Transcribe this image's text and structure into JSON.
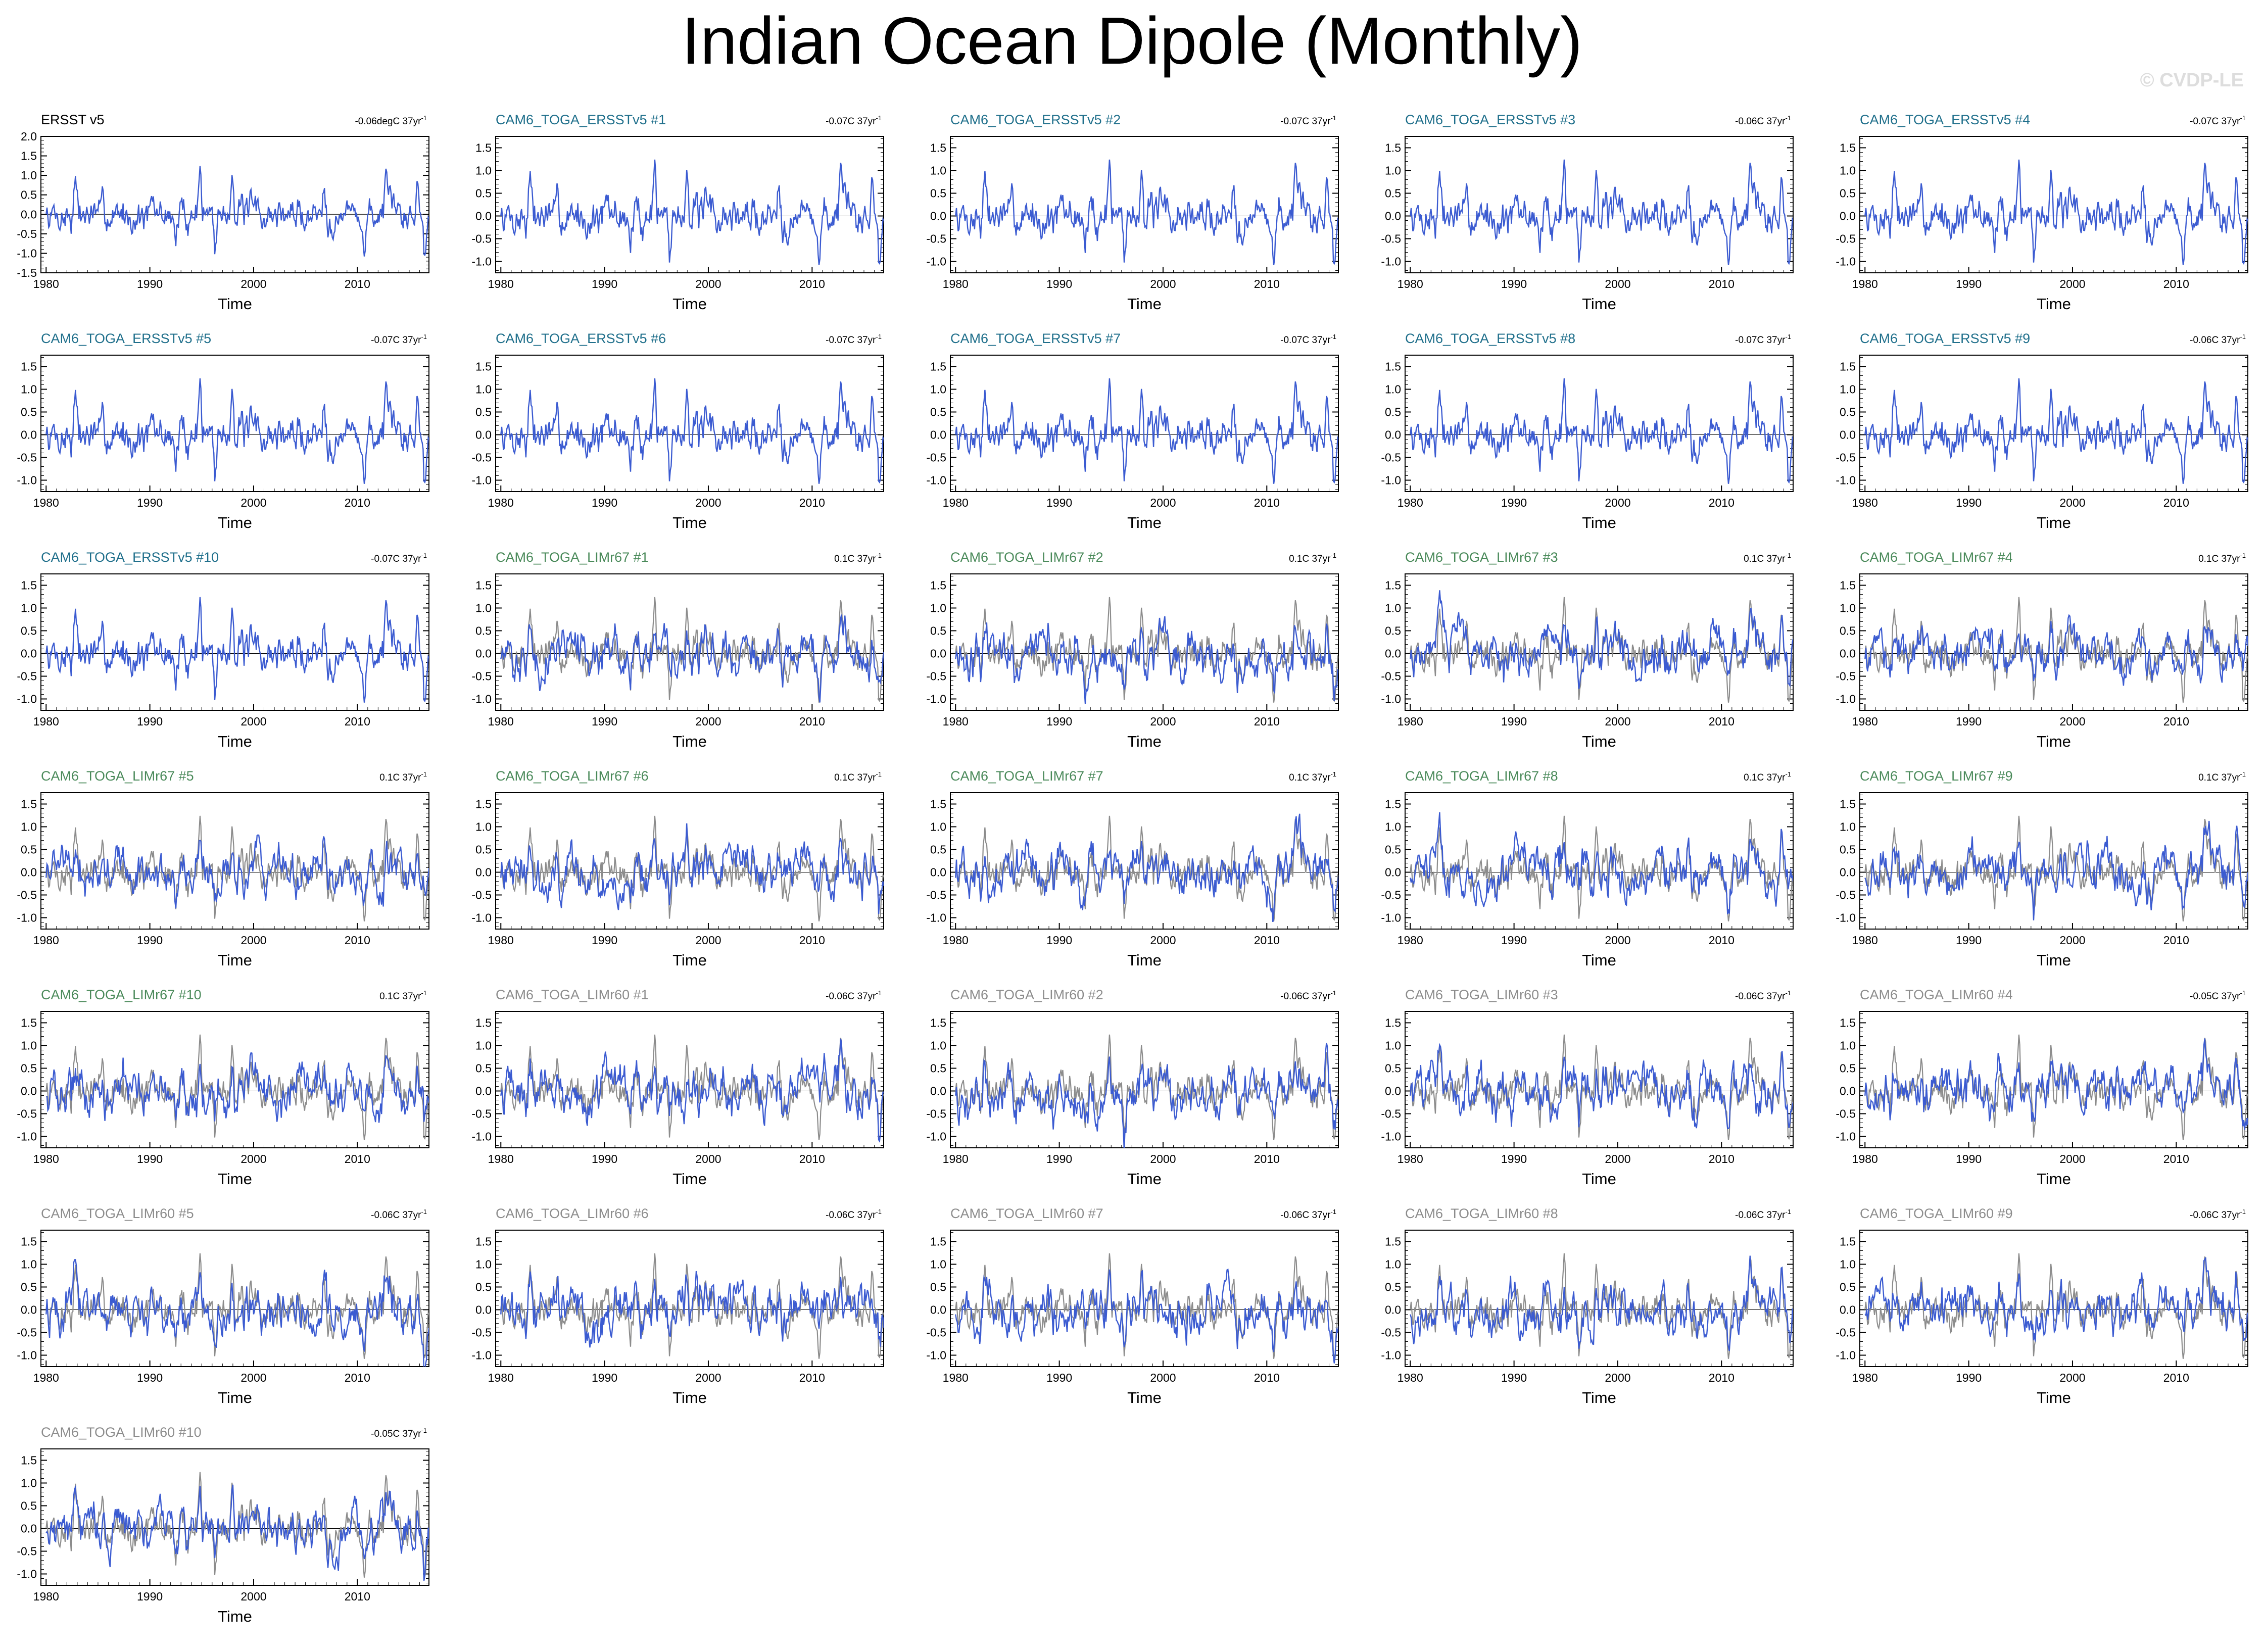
{
  "title": "Indian Ocean Dipole (Monthly)",
  "watermark": "© CVDP-LE",
  "colors": {
    "model_line": "#3b5bd1",
    "observed_line": "#8c8c8c",
    "ersst_title": "#000000",
    "ersstv5_title": "#1f6f8b",
    "limr67_title": "#4a8a5a",
    "limr60_title": "#8c8c8c"
  },
  "chart_data": {
    "type": "line",
    "xlabel": "Time",
    "xlim": [
      1979.5,
      2016.9
    ],
    "x_ticks": [
      1980,
      1990,
      2000,
      2010
    ],
    "trend_unit": "37yr",
    "trend_exponent": "-1",
    "panels": [
      {
        "title": "ERSST v5",
        "group": "ersst",
        "trend": "-0.06degC",
        "ylim": [
          -1.5,
          2.0
        ],
        "y_ticks": [
          "2.0",
          "1.5",
          "1.0",
          "0.5",
          "0.0",
          "-0.5",
          "-1.0",
          "-1.5"
        ],
        "scale": 1.0,
        "seed": 11,
        "overlay": false
      },
      {
        "title": "CAM6_TOGA_ERSSTv5 #1",
        "group": "ersstv5",
        "trend": "-0.07C",
        "ylim": [
          -1.25,
          1.75
        ],
        "y_ticks": [
          "1.5",
          "1.0",
          "0.5",
          "0.0",
          "-0.5",
          "-1.0"
        ],
        "scale": 1.0,
        "seed": 11,
        "overlay": false
      },
      {
        "title": "CAM6_TOGA_ERSSTv5 #2",
        "group": "ersstv5",
        "trend": "-0.07C",
        "ylim": [
          -1.25,
          1.75
        ],
        "y_ticks": [
          "1.5",
          "1.0",
          "0.5",
          "0.0",
          "-0.5",
          "-1.0"
        ],
        "scale": 1.0,
        "seed": 11,
        "overlay": false
      },
      {
        "title": "CAM6_TOGA_ERSSTv5 #3",
        "group": "ersstv5",
        "trend": "-0.06C",
        "ylim": [
          -1.25,
          1.75
        ],
        "y_ticks": [
          "1.5",
          "1.0",
          "0.5",
          "0.0",
          "-0.5",
          "-1.0"
        ],
        "scale": 1.0,
        "seed": 11,
        "overlay": false
      },
      {
        "title": "CAM6_TOGA_ERSSTv5 #4",
        "group": "ersstv5",
        "trend": "-0.07C",
        "ylim": [
          -1.25,
          1.75
        ],
        "y_ticks": [
          "1.5",
          "1.0",
          "0.5",
          "0.0",
          "-0.5",
          "-1.0"
        ],
        "scale": 1.0,
        "seed": 11,
        "overlay": false
      },
      {
        "title": "CAM6_TOGA_ERSSTv5 #5",
        "group": "ersstv5",
        "trend": "-0.07C",
        "ylim": [
          -1.25,
          1.75
        ],
        "y_ticks": [
          "1.5",
          "1.0",
          "0.5",
          "0.0",
          "-0.5",
          "-1.0"
        ],
        "scale": 1.0,
        "seed": 11,
        "overlay": false
      },
      {
        "title": "CAM6_TOGA_ERSSTv5 #6",
        "group": "ersstv5",
        "trend": "-0.07C",
        "ylim": [
          -1.25,
          1.75
        ],
        "y_ticks": [
          "1.5",
          "1.0",
          "0.5",
          "0.0",
          "-0.5",
          "-1.0"
        ],
        "scale": 1.0,
        "seed": 11,
        "overlay": false
      },
      {
        "title": "CAM6_TOGA_ERSSTv5 #7",
        "group": "ersstv5",
        "trend": "-0.07C",
        "ylim": [
          -1.25,
          1.75
        ],
        "y_ticks": [
          "1.5",
          "1.0",
          "0.5",
          "0.0",
          "-0.5",
          "-1.0"
        ],
        "scale": 1.0,
        "seed": 11,
        "overlay": false
      },
      {
        "title": "CAM6_TOGA_ERSSTv5 #8",
        "group": "ersstv5",
        "trend": "-0.07C",
        "ylim": [
          -1.25,
          1.75
        ],
        "y_ticks": [
          "1.5",
          "1.0",
          "0.5",
          "0.0",
          "-0.5",
          "-1.0"
        ],
        "scale": 1.0,
        "seed": 11,
        "overlay": false
      },
      {
        "title": "CAM6_TOGA_ERSSTv5 #9",
        "group": "ersstv5",
        "trend": "-0.06C",
        "ylim": [
          -1.25,
          1.75
        ],
        "y_ticks": [
          "1.5",
          "1.0",
          "0.5",
          "0.0",
          "-0.5",
          "-1.0"
        ],
        "scale": 1.0,
        "seed": 11,
        "overlay": false
      },
      {
        "title": "CAM6_TOGA_ERSSTv5 #10",
        "group": "ersstv5",
        "trend": "-0.07C",
        "ylim": [
          -1.25,
          1.75
        ],
        "y_ticks": [
          "1.5",
          "1.0",
          "0.5",
          "0.0",
          "-0.5",
          "-1.0"
        ],
        "scale": 1.0,
        "seed": 11,
        "overlay": false
      },
      {
        "title": "CAM6_TOGA_LIMr67 #1",
        "group": "limr67",
        "trend": "0.1C",
        "ylim": [
          -1.25,
          1.75
        ],
        "y_ticks": [
          "1.5",
          "1.0",
          "0.5",
          "0.0",
          "-0.5",
          "-1.0"
        ],
        "scale": 0.38,
        "seed": 101,
        "overlay": true
      },
      {
        "title": "CAM6_TOGA_LIMr67 #2",
        "group": "limr67",
        "trend": "0.1C",
        "ylim": [
          -1.25,
          1.75
        ],
        "y_ticks": [
          "1.5",
          "1.0",
          "0.5",
          "0.0",
          "-0.5",
          "-1.0"
        ],
        "scale": 0.38,
        "seed": 102,
        "overlay": true
      },
      {
        "title": "CAM6_TOGA_LIMr67 #3",
        "group": "limr67",
        "trend": "0.1C",
        "ylim": [
          -1.25,
          1.75
        ],
        "y_ticks": [
          "1.5",
          "1.0",
          "0.5",
          "0.0",
          "-0.5",
          "-1.0"
        ],
        "scale": 0.38,
        "seed": 103,
        "overlay": true
      },
      {
        "title": "CAM6_TOGA_LIMr67 #4",
        "group": "limr67",
        "trend": "0.1C",
        "ylim": [
          -1.25,
          1.75
        ],
        "y_ticks": [
          "1.5",
          "1.0",
          "0.5",
          "0.0",
          "-0.5",
          "-1.0"
        ],
        "scale": 0.38,
        "seed": 104,
        "overlay": true
      },
      {
        "title": "CAM6_TOGA_LIMr67 #5",
        "group": "limr67",
        "trend": "0.1C",
        "ylim": [
          -1.25,
          1.75
        ],
        "y_ticks": [
          "1.5",
          "1.0",
          "0.5",
          "0.0",
          "-0.5",
          "-1.0"
        ],
        "scale": 0.38,
        "seed": 105,
        "overlay": true
      },
      {
        "title": "CAM6_TOGA_LIMr67 #6",
        "group": "limr67",
        "trend": "0.1C",
        "ylim": [
          -1.25,
          1.75
        ],
        "y_ticks": [
          "1.5",
          "1.0",
          "0.5",
          "0.0",
          "-0.5",
          "-1.0"
        ],
        "scale": 0.38,
        "seed": 106,
        "overlay": true
      },
      {
        "title": "CAM6_TOGA_LIMr67 #7",
        "group": "limr67",
        "trend": "0.1C",
        "ylim": [
          -1.25,
          1.75
        ],
        "y_ticks": [
          "1.5",
          "1.0",
          "0.5",
          "0.0",
          "-0.5",
          "-1.0"
        ],
        "scale": 0.38,
        "seed": 107,
        "overlay": true
      },
      {
        "title": "CAM6_TOGA_LIMr67 #8",
        "group": "limr67",
        "trend": "0.1C",
        "ylim": [
          -1.25,
          1.75
        ],
        "y_ticks": [
          "1.5",
          "1.0",
          "0.5",
          "0.0",
          "-0.5",
          "-1.0"
        ],
        "scale": 0.38,
        "seed": 108,
        "overlay": true
      },
      {
        "title": "CAM6_TOGA_LIMr67 #9",
        "group": "limr67",
        "trend": "0.1C",
        "ylim": [
          -1.25,
          1.75
        ],
        "y_ticks": [
          "1.5",
          "1.0",
          "0.5",
          "0.0",
          "-0.5",
          "-1.0"
        ],
        "scale": 0.38,
        "seed": 109,
        "overlay": true
      },
      {
        "title": "CAM6_TOGA_LIMr67 #10",
        "group": "limr67",
        "trend": "0.1C",
        "ylim": [
          -1.25,
          1.75
        ],
        "y_ticks": [
          "1.5",
          "1.0",
          "0.5",
          "0.0",
          "-0.5",
          "-1.0"
        ],
        "scale": 0.38,
        "seed": 110,
        "overlay": true
      },
      {
        "title": "CAM6_TOGA_LIMr60 #1",
        "group": "limr60",
        "trend": "-0.06C",
        "ylim": [
          -1.25,
          1.75
        ],
        "y_ticks": [
          "1.5",
          "1.0",
          "0.5",
          "0.0",
          "-0.5",
          "-1.0"
        ],
        "scale": 0.4,
        "seed": 201,
        "overlay": true
      },
      {
        "title": "CAM6_TOGA_LIMr60 #2",
        "group": "limr60",
        "trend": "-0.06C",
        "ylim": [
          -1.25,
          1.75
        ],
        "y_ticks": [
          "1.5",
          "1.0",
          "0.5",
          "0.0",
          "-0.5",
          "-1.0"
        ],
        "scale": 0.4,
        "seed": 202,
        "overlay": true
      },
      {
        "title": "CAM6_TOGA_LIMr60 #3",
        "group": "limr60",
        "trend": "-0.06C",
        "ylim": [
          -1.25,
          1.75
        ],
        "y_ticks": [
          "1.5",
          "1.0",
          "0.5",
          "0.0",
          "-0.5",
          "-1.0"
        ],
        "scale": 0.4,
        "seed": 203,
        "overlay": true
      },
      {
        "title": "CAM6_TOGA_LIMr60 #4",
        "group": "limr60",
        "trend": "-0.05C",
        "ylim": [
          -1.25,
          1.75
        ],
        "y_ticks": [
          "1.5",
          "1.0",
          "0.5",
          "0.0",
          "-0.5",
          "-1.0"
        ],
        "scale": 0.4,
        "seed": 204,
        "overlay": true
      },
      {
        "title": "CAM6_TOGA_LIMr60 #5",
        "group": "limr60",
        "trend": "-0.06C",
        "ylim": [
          -1.25,
          1.75
        ],
        "y_ticks": [
          "1.5",
          "1.0",
          "0.5",
          "0.0",
          "-0.5",
          "-1.0"
        ],
        "scale": 0.4,
        "seed": 205,
        "overlay": true
      },
      {
        "title": "CAM6_TOGA_LIMr60 #6",
        "group": "limr60",
        "trend": "-0.06C",
        "ylim": [
          -1.25,
          1.75
        ],
        "y_ticks": [
          "1.5",
          "1.0",
          "0.5",
          "0.0",
          "-0.5",
          "-1.0"
        ],
        "scale": 0.4,
        "seed": 206,
        "overlay": true
      },
      {
        "title": "CAM6_TOGA_LIMr60 #7",
        "group": "limr60",
        "trend": "-0.06C",
        "ylim": [
          -1.25,
          1.75
        ],
        "y_ticks": [
          "1.5",
          "1.0",
          "0.5",
          "0.0",
          "-0.5",
          "-1.0"
        ],
        "scale": 0.4,
        "seed": 207,
        "overlay": true
      },
      {
        "title": "CAM6_TOGA_LIMr60 #8",
        "group": "limr60",
        "trend": "-0.06C",
        "ylim": [
          -1.25,
          1.75
        ],
        "y_ticks": [
          "1.5",
          "1.0",
          "0.5",
          "0.0",
          "-0.5",
          "-1.0"
        ],
        "scale": 0.4,
        "seed": 208,
        "overlay": true
      },
      {
        "title": "CAM6_TOGA_LIMr60 #9",
        "group": "limr60",
        "trend": "-0.06C",
        "ylim": [
          -1.25,
          1.75
        ],
        "y_ticks": [
          "1.5",
          "1.0",
          "0.5",
          "0.0",
          "-0.5",
          "-1.0"
        ],
        "scale": 0.4,
        "seed": 209,
        "overlay": true
      },
      {
        "title": "CAM6_TOGA_LIMr60 #10",
        "group": "limr60",
        "trend": "-0.05C",
        "ylim": [
          -1.25,
          1.75
        ],
        "y_ticks": [
          "1.5",
          "1.0",
          "0.5",
          "0.0",
          "-0.5",
          "-1.0"
        ],
        "scale": 0.4,
        "seed": 210,
        "overlay": true
      }
    ]
  }
}
